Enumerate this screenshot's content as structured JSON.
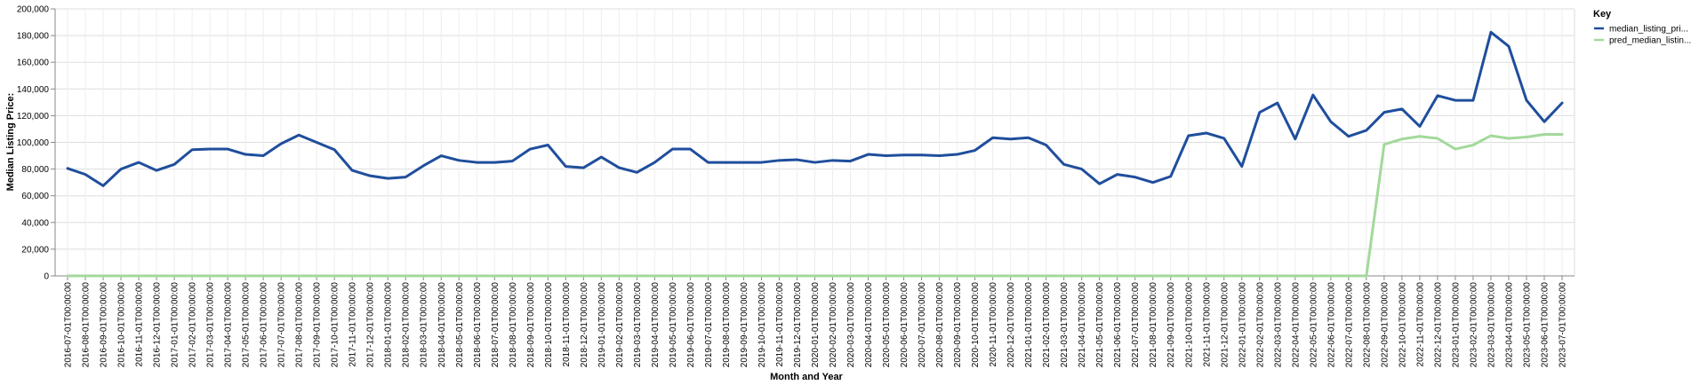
{
  "chart_data": {
    "type": "line",
    "xlabel": "Month and Year",
    "ylabel": "Median Listing Price:",
    "ylim": [
      0,
      200000
    ],
    "yticks": [
      "0",
      "20,000",
      "40,000",
      "60,000",
      "80,000",
      "100,000",
      "120,000",
      "140,000",
      "160,000",
      "180,000",
      "200,000"
    ],
    "grid": true,
    "legend": {
      "title": "Key",
      "placement": "top-right"
    },
    "x": [
      "2016-07-01T00:00:00",
      "2016-08-01T00:00:00",
      "2016-09-01T00:00:00",
      "2016-10-01T00:00:00",
      "2016-11-01T00:00:00",
      "2016-12-01T00:00:00",
      "2017-01-01T00:00:00",
      "2017-02-01T00:00:00",
      "2017-03-01T00:00:00",
      "2017-04-01T00:00:00",
      "2017-05-01T00:00:00",
      "2017-06-01T00:00:00",
      "2017-07-01T00:00:00",
      "2017-08-01T00:00:00",
      "2017-09-01T00:00:00",
      "2017-10-01T00:00:00",
      "2017-11-01T00:00:00",
      "2017-12-01T00:00:00",
      "2018-01-01T00:00:00",
      "2018-02-01T00:00:00",
      "2018-03-01T00:00:00",
      "2018-04-01T00:00:00",
      "2018-05-01T00:00:00",
      "2018-06-01T00:00:00",
      "2018-07-01T00:00:00",
      "2018-08-01T00:00:00",
      "2018-09-01T00:00:00",
      "2018-10-01T00:00:00",
      "2018-11-01T00:00:00",
      "2018-12-01T00:00:00",
      "2019-01-01T00:00:00",
      "2019-02-01T00:00:00",
      "2019-03-01T00:00:00",
      "2019-04-01T00:00:00",
      "2019-05-01T00:00:00",
      "2019-06-01T00:00:00",
      "2019-07-01T00:00:00",
      "2019-08-01T00:00:00",
      "2019-09-01T00:00:00",
      "2019-10-01T00:00:00",
      "2019-11-01T00:00:00",
      "2019-12-01T00:00:00",
      "2020-01-01T00:00:00",
      "2020-02-01T00:00:00",
      "2020-03-01T00:00:00",
      "2020-04-01T00:00:00",
      "2020-05-01T00:00:00",
      "2020-06-01T00:00:00",
      "2020-07-01T00:00:00",
      "2020-08-01T00:00:00",
      "2020-09-01T00:00:00",
      "2020-10-01T00:00:00",
      "2020-11-01T00:00:00",
      "2020-12-01T00:00:00",
      "2021-01-01T00:00:00",
      "2021-02-01T00:00:00",
      "2021-03-01T00:00:00",
      "2021-04-01T00:00:00",
      "2021-05-01T00:00:00",
      "2021-06-01T00:00:00",
      "2021-07-01T00:00:00",
      "2021-08-01T00:00:00",
      "2021-09-01T00:00:00",
      "2021-10-01T00:00:00",
      "2021-11-01T00:00:00",
      "2021-12-01T00:00:00",
      "2022-01-01T00:00:00",
      "2022-02-01T00:00:00",
      "2022-03-01T00:00:00",
      "2022-04-01T00:00:00",
      "2022-05-01T00:00:00",
      "2022-06-01T00:00:00",
      "2022-07-01T00:00:00",
      "2022-08-01T00:00:00",
      "2022-09-01T00:00:00",
      "2022-10-01T00:00:00",
      "2022-11-01T00:00:00",
      "2022-12-01T00:00:00",
      "2023-01-01T00:00:00",
      "2023-02-01T00:00:00",
      "2023-03-01T00:00:00",
      "2023-04-01T00:00:00",
      "2023-05-01T00:00:00",
      "2023-06-01T00:00:00",
      "2023-07-01T00:00:00"
    ],
    "series": [
      {
        "name": "median_listing_pri...",
        "color": "#1f4e9c",
        "values": [
          80500,
          76000,
          67500,
          80000,
          85000,
          79000,
          83500,
          94500,
          95000,
          95000,
          91000,
          90000,
          99000,
          105500,
          100000,
          94500,
          79000,
          75000,
          73000,
          74000,
          82500,
          90000,
          86500,
          85000,
          85000,
          86000,
          95000,
          98000,
          82000,
          81000,
          89000,
          81000,
          77500,
          85000,
          95000,
          95000,
          85000,
          85000,
          85000,
          85000,
          86500,
          87000,
          85000,
          86500,
          86000,
          91000,
          90000,
          90500,
          90500,
          90000,
          91000,
          94000,
          103500,
          102500,
          103500,
          98000,
          83500,
          80000,
          69000,
          76000,
          74000,
          70000,
          74500,
          105000,
          107000,
          103000,
          82000,
          122500,
          129500,
          102500,
          135500,
          115500,
          104500,
          109000,
          122500,
          125000,
          112000,
          135000,
          131500,
          131500,
          182500,
          172000,
          131500,
          115500,
          129500
        ]
      },
      {
        "name": "pred_median_listin...",
        "color": "#a3d99b",
        "values": [
          0,
          0,
          0,
          0,
          0,
          0,
          0,
          0,
          0,
          0,
          0,
          0,
          0,
          0,
          0,
          0,
          0,
          0,
          0,
          0,
          0,
          0,
          0,
          0,
          0,
          0,
          0,
          0,
          0,
          0,
          0,
          0,
          0,
          0,
          0,
          0,
          0,
          0,
          0,
          0,
          0,
          0,
          0,
          0,
          0,
          0,
          0,
          0,
          0,
          0,
          0,
          0,
          0,
          0,
          0,
          0,
          0,
          0,
          0,
          0,
          0,
          0,
          0,
          0,
          0,
          0,
          0,
          0,
          0,
          0,
          0,
          0,
          0,
          0,
          98500,
          102500,
          104500,
          103000,
          95000,
          98000,
          105000,
          103000,
          104000,
          106000,
          106000
        ]
      }
    ]
  }
}
